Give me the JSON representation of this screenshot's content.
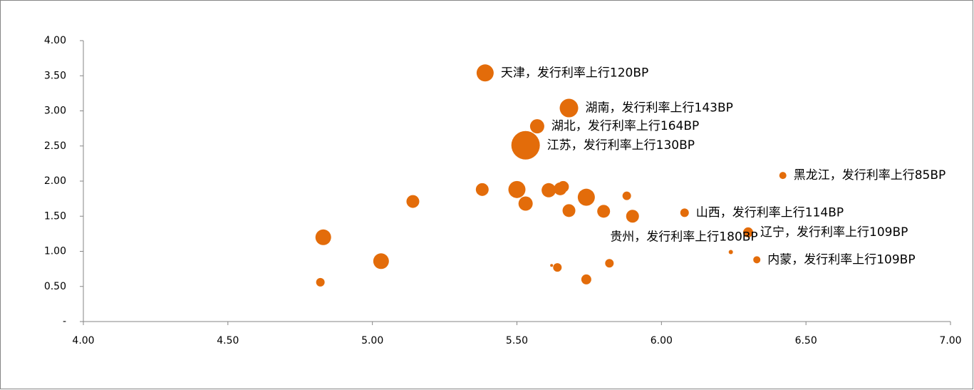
{
  "chart_data": {
    "type": "scatter",
    "series": [
      {
        "color": "#e36c0a",
        "x": [
          5.39,
          5.68,
          5.57,
          5.53,
          6.42,
          6.08,
          6.3,
          6.24,
          6.33,
          4.83,
          4.82,
          5.03,
          5.14,
          5.38,
          5.5,
          5.53,
          5.61,
          5.65,
          5.66,
          5.74,
          5.68,
          5.8,
          5.9,
          5.88,
          5.62,
          5.64,
          5.74,
          5.82
        ],
        "values": [
          3.54,
          3.04,
          2.78,
          2.51,
          2.08,
          1.55,
          1.27,
          0.99,
          0.88,
          1.2,
          0.56,
          0.86,
          1.71,
          1.88,
          1.88,
          1.68,
          1.87,
          1.89,
          1.92,
          1.77,
          1.58,
          1.57,
          1.5,
          1.79,
          0.8,
          0.77,
          0.6,
          0.83
        ],
        "sizes": [
          12,
          13,
          10,
          20,
          5,
          6,
          7,
          3,
          5,
          11,
          6,
          11,
          9,
          9,
          12,
          10,
          10,
          9,
          8,
          12,
          9,
          9,
          9,
          6,
          2,
          6,
          7,
          6
        ],
        "labels": [
          "天津，发行利率上行120BP",
          "湖南，发行利率上行143BP",
          "湖北，发行利率上行164BP",
          "江苏，发行利率上行130BP",
          "黑龙江，发行利率上行85BP",
          "山西，发行利率上行114BP",
          "辽宁，发行利率上行109BP",
          "贵州，发行利率上行180BP",
          "内蒙，发行利率上行109BP",
          null,
          null,
          null,
          null,
          null,
          null,
          null,
          null,
          null,
          null,
          null,
          null,
          null,
          null,
          null,
          null,
          null,
          null,
          null
        ]
      }
    ],
    "xlim": [
      4.0,
      7.0
    ],
    "ylim": [
      0,
      4.0
    ],
    "xticks": [
      {
        "value": 4.0,
        "label": "4.00"
      },
      {
        "value": 4.5,
        "label": "4.50"
      },
      {
        "value": 5.0,
        "label": "5.00"
      },
      {
        "value": 5.5,
        "label": "5.50"
      },
      {
        "value": 6.0,
        "label": "6.00"
      },
      {
        "value": 6.5,
        "label": "6.50"
      },
      {
        "value": 7.0,
        "label": "7.00"
      }
    ],
    "yticks": [
      {
        "value": 0,
        "label": "-"
      },
      {
        "value": 0.5,
        "label": "0.50"
      },
      {
        "value": 1.0,
        "label": "1.00"
      },
      {
        "value": 1.5,
        "label": "1.50"
      },
      {
        "value": 2.0,
        "label": "2.00"
      },
      {
        "value": 2.5,
        "label": "2.50"
      },
      {
        "value": 3.0,
        "label": "3.00"
      },
      {
        "value": 3.5,
        "label": "3.50"
      },
      {
        "value": 4.0,
        "label": "4.00"
      }
    ]
  }
}
